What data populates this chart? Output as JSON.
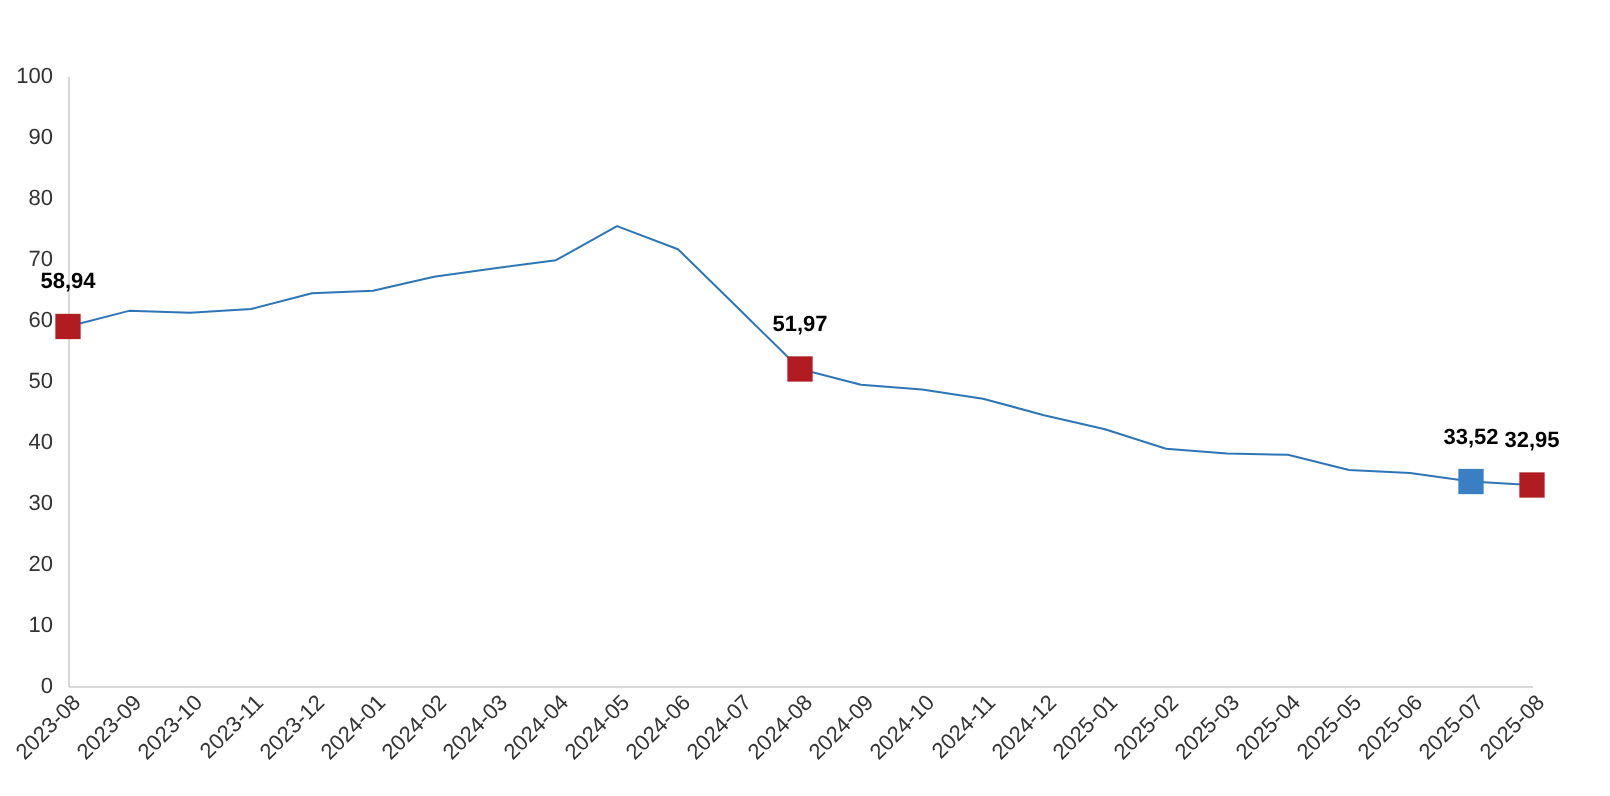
{
  "chart_data": {
    "type": "line",
    "categories": [
      "2023-08",
      "2023-09",
      "2023-10",
      "2023-11",
      "2023-12",
      "2024-01",
      "2024-02",
      "2024-03",
      "2024-04",
      "2024-05",
      "2024-06",
      "2024-07",
      "2024-08",
      "2024-09",
      "2024-10",
      "2024-11",
      "2024-12",
      "2025-01",
      "2025-02",
      "2025-03",
      "2025-04",
      "2025-05",
      "2025-06",
      "2025-07",
      "2025-08"
    ],
    "series": [
      {
        "type": "line",
        "color": "#2e75b6",
        "marker": "none",
        "values": [
          58.94,
          61.5,
          61.2,
          61.8,
          64.4,
          64.8,
          67.1,
          68.5,
          69.8,
          75.4,
          71.6,
          61.8,
          51.97,
          49.4,
          48.6,
          47.1,
          44.4,
          42.1,
          38.9,
          38.1,
          37.9,
          35.4,
          34.9,
          33.52,
          32.95
        ]
      },
      {
        "type": "scatter",
        "marker": "square",
        "colors": [
          "#b01c22",
          null,
          null,
          null,
          null,
          null,
          null,
          null,
          null,
          null,
          null,
          null,
          "#b01c22",
          null,
          null,
          null,
          null,
          null,
          null,
          null,
          null,
          null,
          null,
          "#3a7fc1",
          "#b01c22"
        ],
        "values": [
          58.94,
          null,
          null,
          null,
          null,
          null,
          null,
          null,
          null,
          null,
          null,
          null,
          51.97,
          null,
          null,
          null,
          null,
          null,
          null,
          null,
          null,
          null,
          null,
          33.52,
          32.95
        ],
        "value_labels": [
          "58,94",
          null,
          null,
          null,
          null,
          null,
          null,
          null,
          null,
          null,
          null,
          null,
          "51,97",
          null,
          null,
          null,
          null,
          null,
          null,
          null,
          null,
          null,
          null,
          "33,52",
          "32,95"
        ]
      }
    ],
    "ylim": [
      0,
      100
    ],
    "yticks": [
      0,
      10,
      20,
      30,
      40,
      50,
      60,
      70,
      80,
      90,
      100
    ],
    "grid": false
  }
}
